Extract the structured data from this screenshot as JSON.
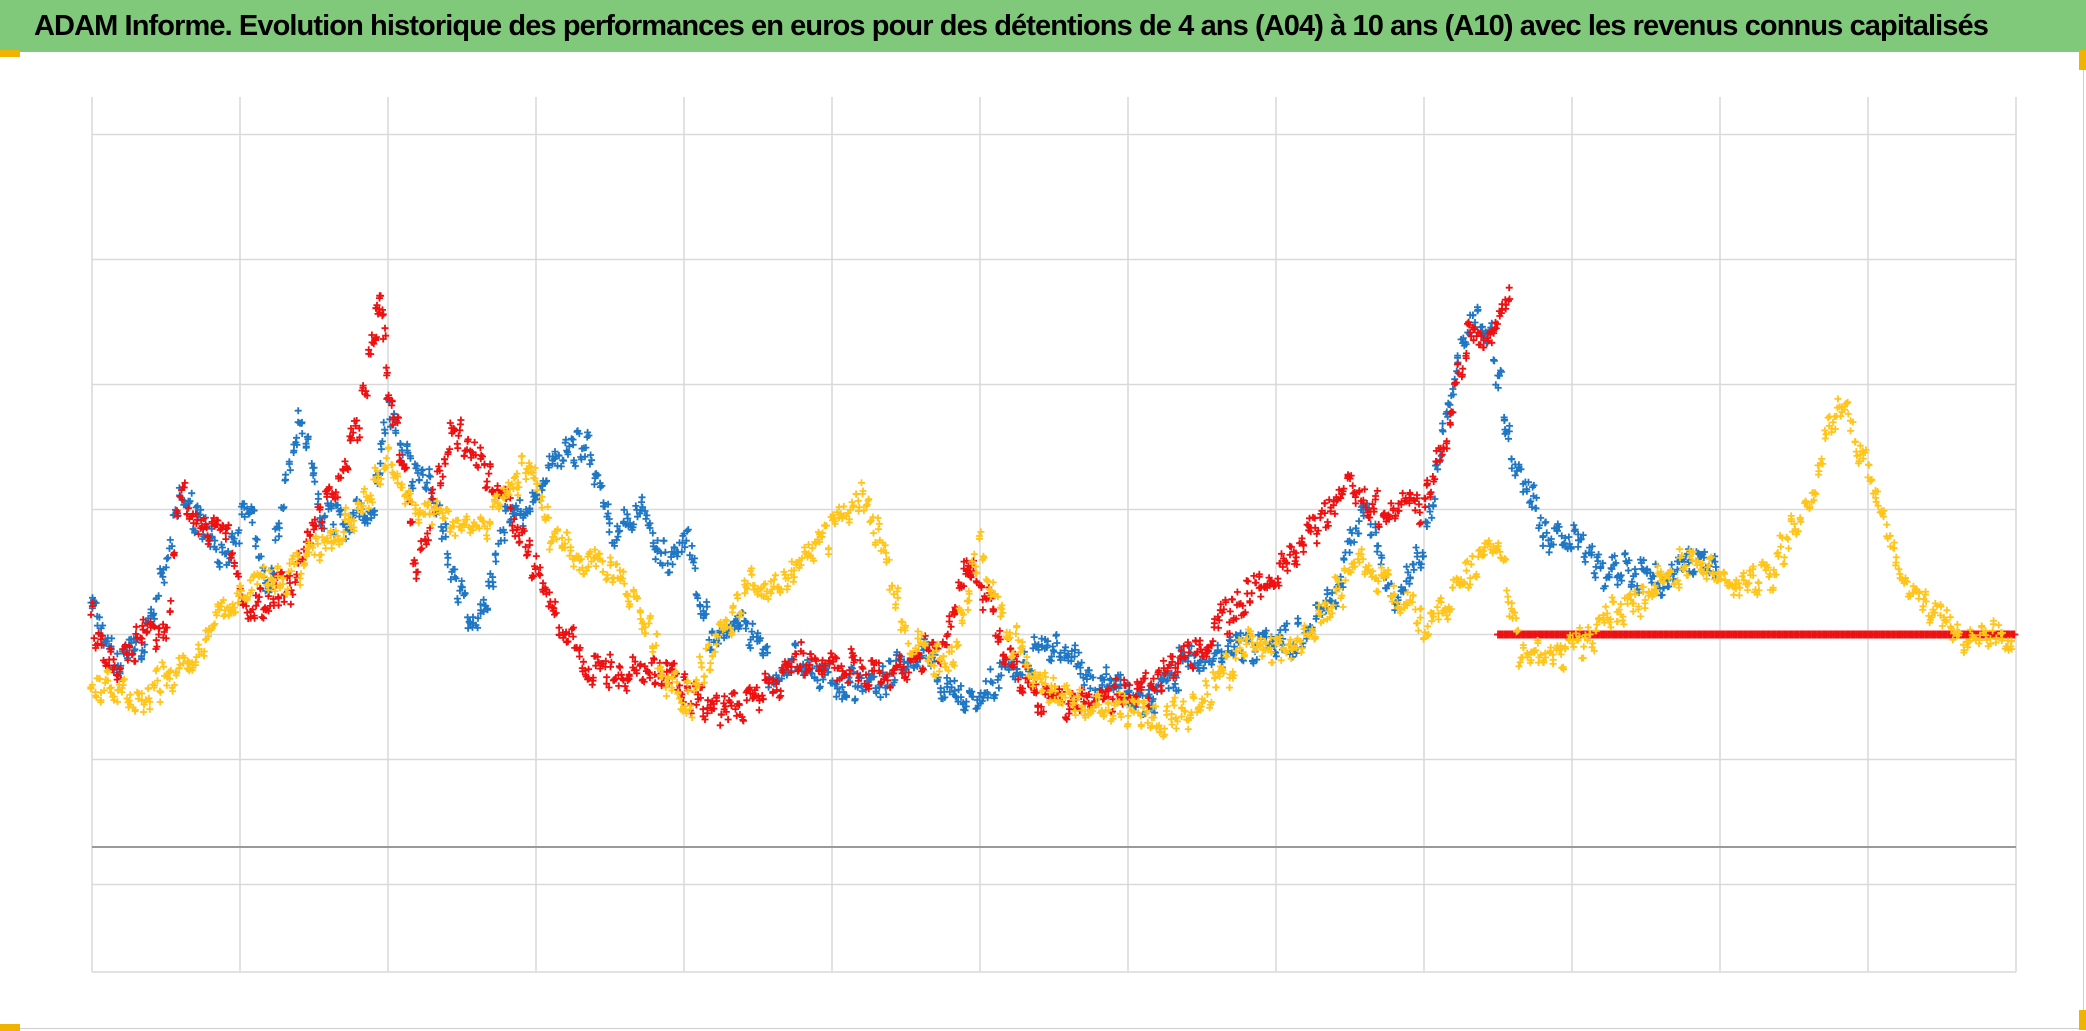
{
  "title": "ADAM Informe. Evolution historique des performances en euros pour des détentions de 4 ans (A04) à 10 ans (A10) avec les revenus connus capitalisés",
  "colors": {
    "title_bg": "#80c97a",
    "corner": "#f0b400",
    "grid": "#d9d9d9",
    "series_blue": "#1f77c4",
    "series_red": "#ee1111",
    "series_yellow": "#ffc51a"
  },
  "chart_data": {
    "type": "scatter",
    "title": "ADAM Informe. Evolution historique des performances en euros pour des détentions de 4 ans (A04) à 10 ans (A10) avec les revenus connus capitalisés",
    "marker": "plus",
    "grid": true,
    "xlim": [
      0,
      13
    ],
    "ylim": [
      -0.7,
      6.3
    ],
    "x_gridlines": 13,
    "y_gridlines": [
      0,
      1,
      2,
      3,
      4,
      5,
      6
    ],
    "baseline_y": 0.3,
    "tick_labels_visible": false,
    "legend": "none",
    "series": [
      {
        "color": "#1f77c4",
        "x": [
          0,
          0.15,
          0.35,
          0.6,
          0.9,
          1.05,
          1.2,
          1.4,
          1.55,
          1.7,
          1.9,
          2.0,
          2.1,
          2.3,
          2.5,
          2.6,
          2.8,
          3.0,
          3.2,
          3.35,
          3.5,
          3.7,
          3.85,
          4.0,
          4.2,
          4.4,
          4.6,
          4.8,
          5.0,
          5.3,
          5.6,
          5.8,
          5.95,
          6.1,
          6.3,
          6.5,
          6.8,
          7.0,
          7.2,
          7.4,
          7.6,
          7.8,
          8.0,
          8.2,
          8.4,
          8.6,
          8.8,
          9.0,
          9.15,
          9.3,
          9.45,
          9.6,
          9.7,
          9.8,
          10.0,
          10.2,
          10.4,
          10.6,
          10.8,
          11.0
        ],
        "y": [
          2.2,
          1.8,
          1.9,
          3.1,
          2.6,
          3.1,
          2.4,
          3.8,
          3.0,
          2.9,
          3.0,
          3.8,
          3.4,
          3.2,
          2.3,
          2.0,
          2.9,
          3.1,
          3.5,
          3.5,
          2.8,
          3.0,
          2.6,
          2.8,
          1.9,
          2.1,
          1.7,
          1.8,
          1.6,
          1.6,
          1.9,
          1.5,
          1.5,
          1.6,
          1.8,
          1.9,
          1.6,
          1.5,
          1.5,
          1.8,
          1.8,
          1.9,
          1.9,
          2.0,
          2.3,
          3.0,
          2.2,
          2.7,
          3.7,
          4.5,
          4.4,
          3.4,
          3.2,
          2.8,
          2.8,
          2.5,
          2.5,
          2.4,
          2.6,
          2.5
        ]
      },
      {
        "color": "#ee1111",
        "x": [
          0,
          0.15,
          0.35,
          0.5,
          0.6,
          0.75,
          0.9,
          1.05,
          1.2,
          1.35,
          1.45,
          1.6,
          1.7,
          1.8,
          1.9,
          1.95,
          2.0,
          2.1,
          2.2,
          2.3,
          2.45,
          2.6,
          2.8,
          3.0,
          3.2,
          3.4,
          3.55,
          3.7,
          3.9,
          4.05,
          4.2,
          4.4,
          4.6,
          4.8,
          5.0,
          5.2,
          5.5,
          5.8,
          5.9,
          5.95,
          6.05,
          6.2,
          6.4,
          6.6,
          6.8,
          7.0,
          7.2,
          7.5,
          7.7,
          7.9,
          8.1,
          8.3,
          8.5,
          8.7,
          9.0,
          9.15,
          9.3,
          9.45,
          9.6
        ],
        "y": [
          2.1,
          1.7,
          2.0,
          2.0,
          3.2,
          2.8,
          2.9,
          2.2,
          2.3,
          2.4,
          2.7,
          3.1,
          3.3,
          3.7,
          4.4,
          4.7,
          3.9,
          3.4,
          2.5,
          3.0,
          3.7,
          3.4,
          3.1,
          2.5,
          2.0,
          1.7,
          1.7,
          1.7,
          1.7,
          1.5,
          1.4,
          1.4,
          1.6,
          1.8,
          1.8,
          1.7,
          1.7,
          2.0,
          2.6,
          2.5,
          2.3,
          1.8,
          1.5,
          1.4,
          1.5,
          1.5,
          1.6,
          1.9,
          2.2,
          2.4,
          2.6,
          2.9,
          3.2,
          3.0,
          3.0,
          3.6,
          4.4,
          4.4,
          4.8
        ]
      },
      {
        "color": "#ee1111",
        "x": [
          9.5,
          13.0
        ],
        "y": [
          2.0,
          2.0
        ],
        "style": "flat"
      },
      {
        "color": "#ffc51a",
        "x": [
          0,
          0.15,
          0.35,
          0.55,
          0.75,
          0.9,
          1.05,
          1.25,
          1.45,
          1.65,
          1.8,
          2.0,
          2.2,
          2.4,
          2.6,
          2.8,
          2.95,
          3.1,
          3.3,
          3.5,
          3.7,
          3.9,
          4.05,
          4.2,
          4.45,
          4.7,
          4.85,
          5.0,
          5.2,
          5.4,
          5.5,
          5.65,
          5.8,
          6.0,
          6.2,
          6.4,
          6.6,
          6.8,
          7.0,
          7.2,
          7.4,
          7.6,
          7.8,
          8.0,
          8.2,
          8.4,
          8.6,
          8.8,
          9.0,
          9.2,
          9.5,
          9.65,
          9.85,
          10.05,
          10.3,
          10.5,
          10.8,
          11.0,
          11.2,
          11.35,
          11.5,
          11.6,
          11.8,
          12.0,
          12.3,
          12.6,
          13.0
        ],
        "y": [
          1.6,
          1.6,
          1.5,
          1.7,
          1.9,
          2.2,
          2.4,
          2.4,
          2.6,
          2.8,
          3.0,
          3.4,
          3.0,
          2.9,
          2.8,
          3.1,
          3.4,
          2.8,
          2.6,
          2.5,
          2.2,
          1.6,
          1.5,
          1.9,
          2.4,
          2.4,
          2.7,
          2.8,
          3.1,
          2.5,
          2.0,
          1.8,
          1.8,
          2.7,
          2.0,
          1.6,
          1.5,
          1.4,
          1.4,
          1.3,
          1.4,
          1.6,
          1.9,
          1.9,
          2.0,
          2.3,
          2.6,
          2.3,
          2.1,
          2.3,
          2.8,
          1.9,
          1.8,
          1.9,
          2.2,
          2.3,
          2.6,
          2.5,
          2.4,
          2.5,
          2.9,
          3.0,
          3.9,
          3.3,
          2.3,
          2.0,
          2.0
        ]
      }
    ]
  }
}
